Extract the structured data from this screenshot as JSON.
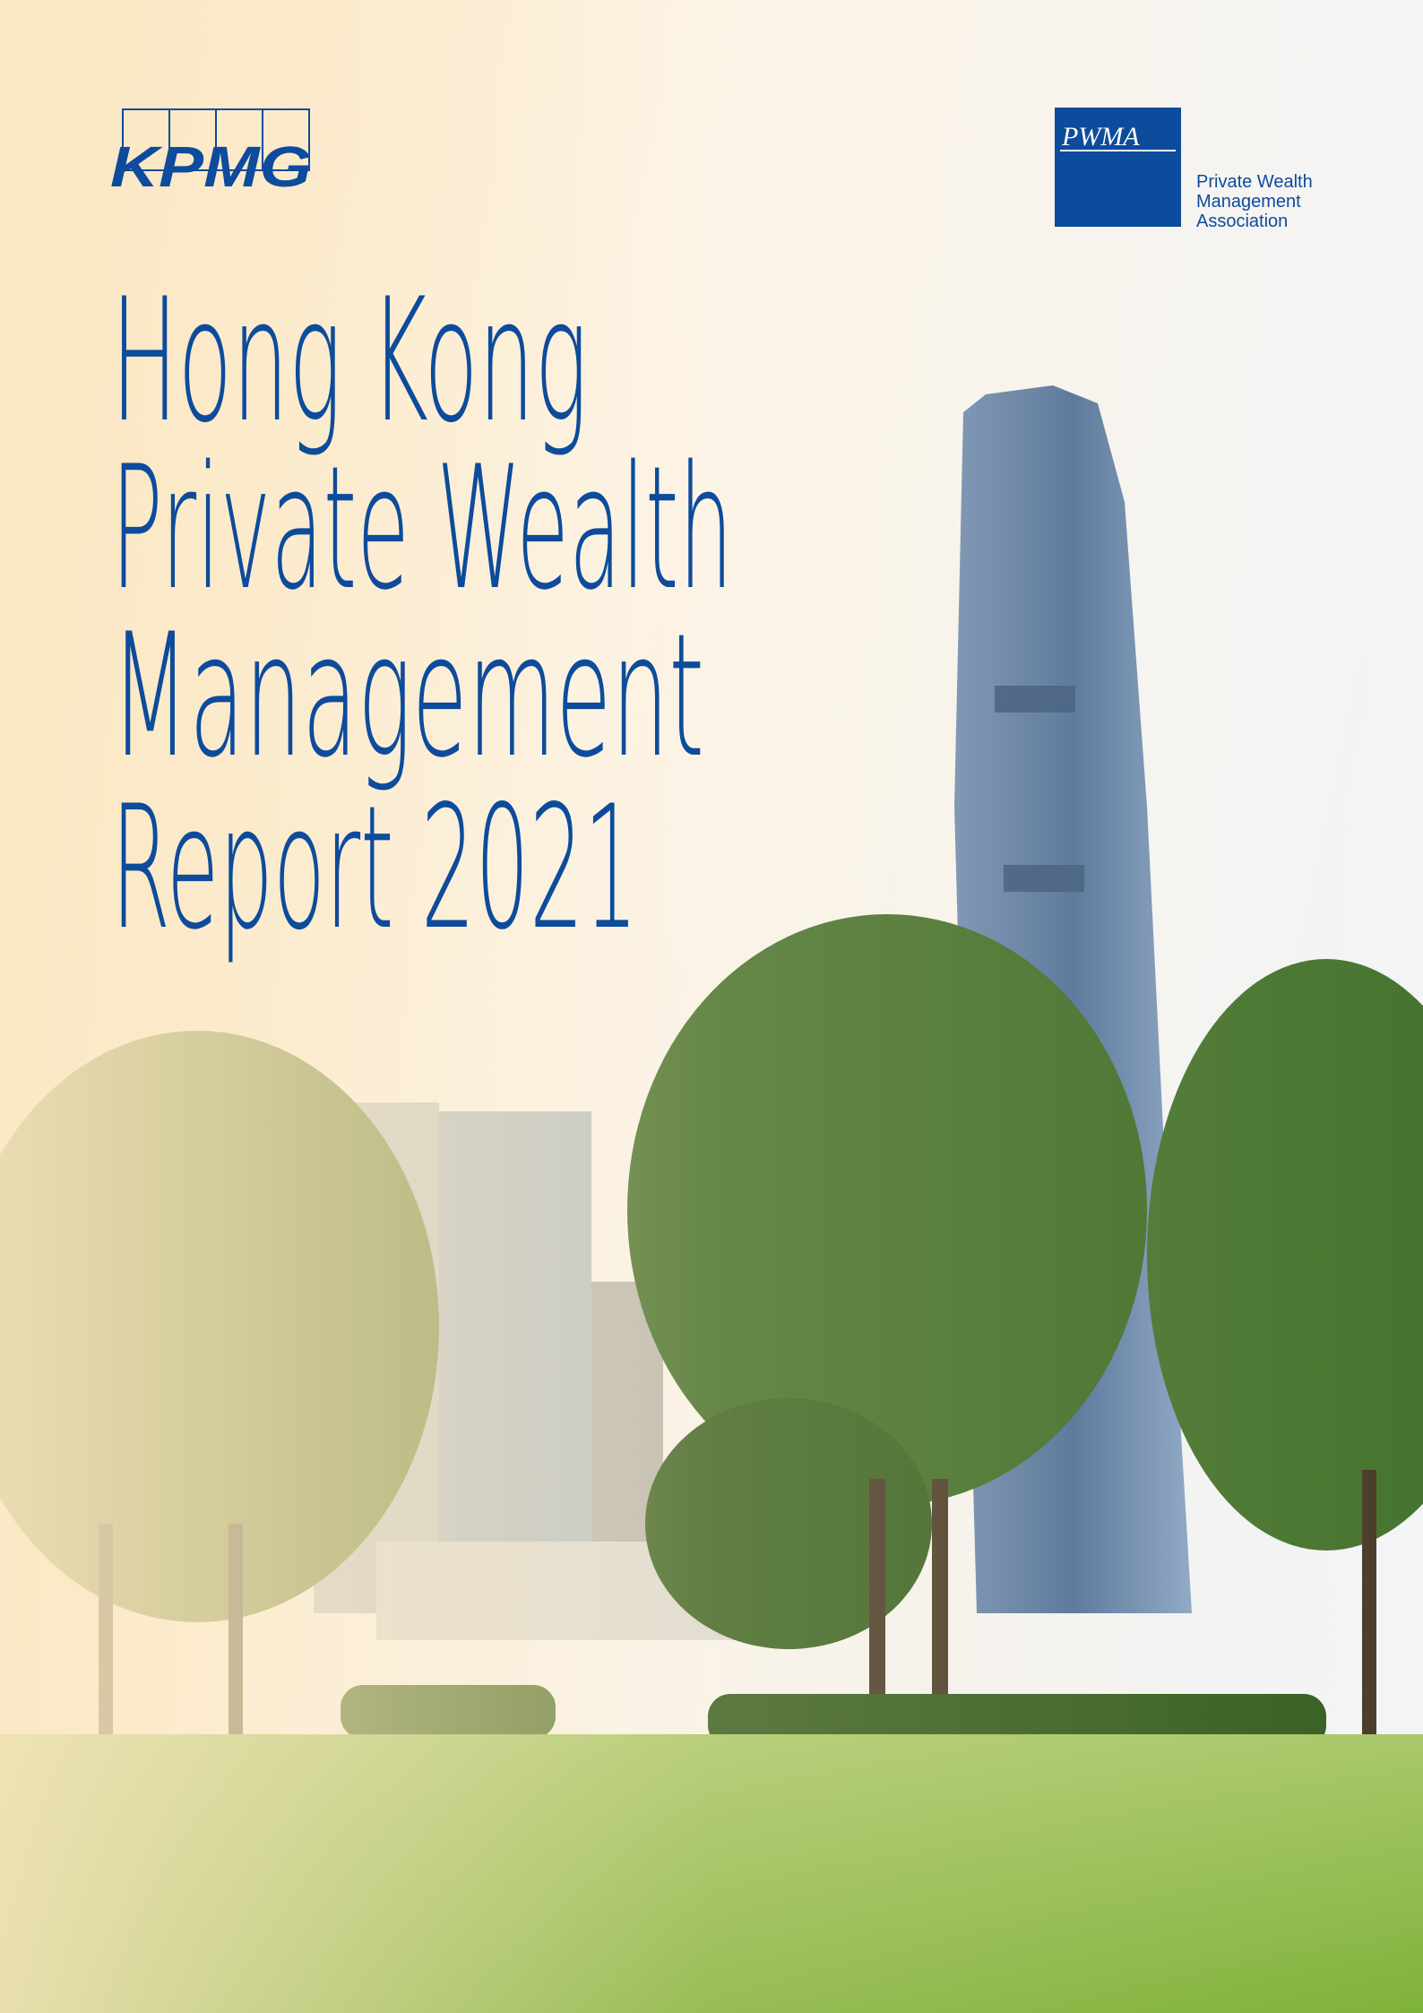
{
  "header": {
    "kpmg_logo": "KPMG",
    "pwma_logo": "PWMA",
    "pwma_name": [
      "Private Wealth",
      "Management",
      "Association"
    ]
  },
  "title": [
    "Hong Kong",
    "Private Wealth",
    "Management",
    "Report 2021"
  ]
}
